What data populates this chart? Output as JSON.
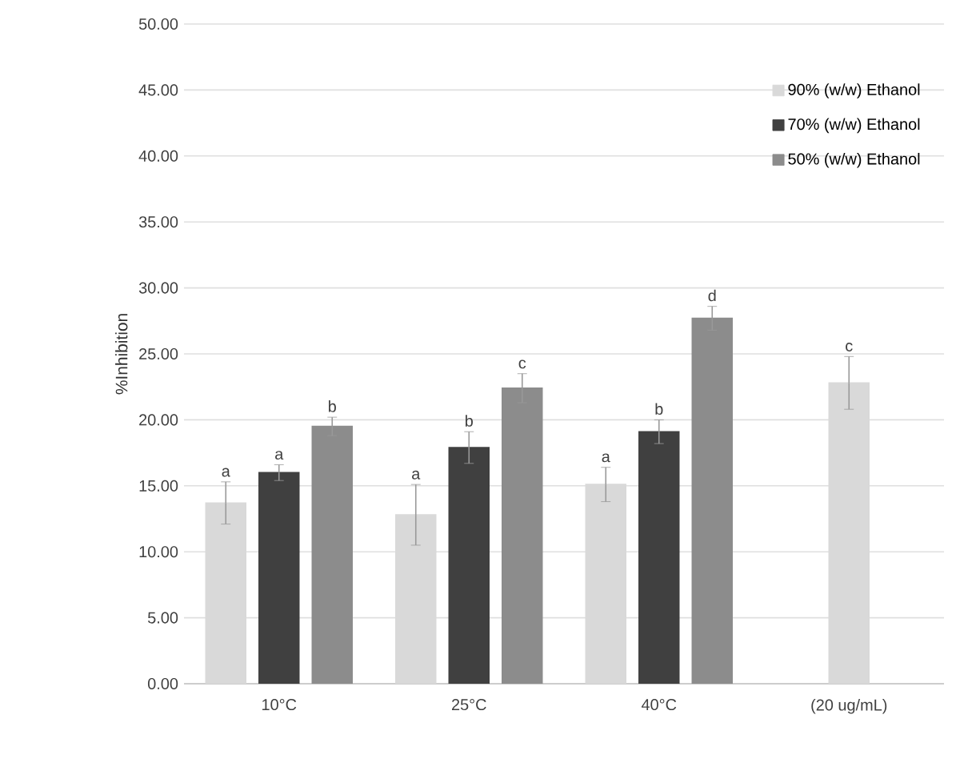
{
  "chart_data": {
    "type": "bar",
    "ylabel": "%Inhibition",
    "categories": [
      "10°C",
      "25°C",
      "40°C",
      "(20 ug/mL)"
    ],
    "series": [
      {
        "name": "90% (w/w) Ethanol",
        "color": "#d9d9d9",
        "values": [
          13.7,
          12.8,
          15.1,
          22.8
        ],
        "errors": [
          1.6,
          2.3,
          1.3,
          2.0
        ],
        "value_labels": [
          "a",
          "a",
          "a",
          "c"
        ]
      },
      {
        "name": "70% (w/w) Ethanol",
        "color": "#404040",
        "values": [
          16.0,
          17.9,
          19.1,
          null
        ],
        "errors": [
          0.6,
          1.2,
          0.9,
          null
        ],
        "value_labels": [
          "a",
          "b",
          "b",
          null
        ]
      },
      {
        "name": "50% (w/w) Ethanol",
        "color": "#8c8c8c",
        "values": [
          19.5,
          22.4,
          27.7,
          null
        ],
        "errors": [
          0.7,
          1.1,
          0.9,
          null
        ],
        "value_labels": [
          "b",
          "c",
          "d",
          null
        ]
      }
    ],
    "ylim": [
      0,
      50
    ],
    "yticks": [
      {
        "value": 0,
        "label": "0.00"
      },
      {
        "value": 5,
        "label": "5.00"
      },
      {
        "value": 10,
        "label": "10.00"
      },
      {
        "value": 15,
        "label": "15.00"
      },
      {
        "value": 20,
        "label": "20.00"
      },
      {
        "value": 25,
        "label": "25.00"
      },
      {
        "value": 30,
        "label": "30.00"
      },
      {
        "value": 35,
        "label": "35.00"
      },
      {
        "value": 40,
        "label": "40.00"
      },
      {
        "value": 45,
        "label": "45.00"
      },
      {
        "value": 50,
        "label": "50.00"
      }
    ],
    "grid": "y",
    "legend": "top right"
  }
}
